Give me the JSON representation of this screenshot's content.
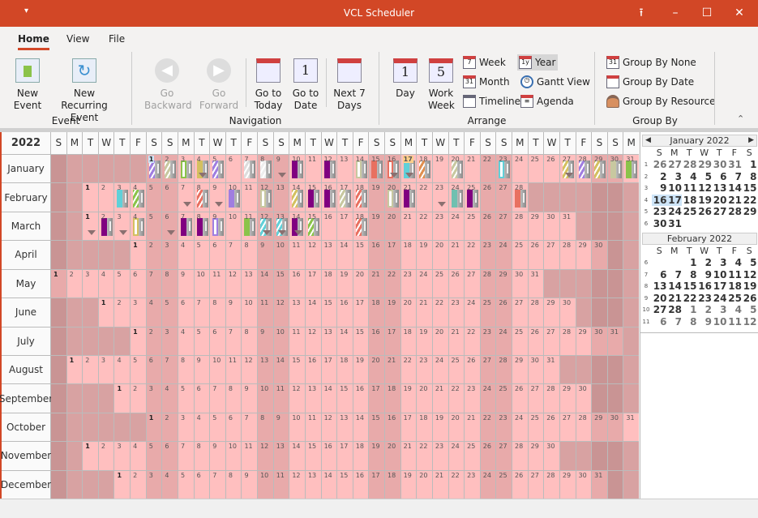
{
  "window": {
    "title": "VCL Scheduler",
    "quick_access_icon": "dropdown-icon",
    "controls": [
      "restore-icon",
      "minimize-icon",
      "maximize-icon",
      "close-icon"
    ],
    "accent": "#d24726"
  },
  "ribbon": {
    "tabs": [
      {
        "label": "Home",
        "active": true
      },
      {
        "label": "View"
      },
      {
        "label": "File"
      }
    ],
    "groups": {
      "event": {
        "label": "Event",
        "new_event": "New Event",
        "new_recurring": "New Recurring Event"
      },
      "navigation": {
        "label": "Navigation",
        "go_backward": "Go Backward",
        "go_forward": "Go Forward",
        "go_today": "Go to Today",
        "go_date": "Go to Date",
        "next7": "Next 7 Days"
      },
      "arrange": {
        "label": "Arrange",
        "day": "Day",
        "work_week": "Work Week",
        "week": "Week",
        "month": "Month",
        "timeline": "Timeline",
        "year": "Year",
        "gantt": "Gantt View",
        "agenda": "Agenda",
        "selected": "Year"
      },
      "group_by": {
        "label": "Group By",
        "none": "Group By None",
        "date": "Group By Date",
        "resource": "Group By Resource"
      }
    }
  },
  "year_view": {
    "year": "2022",
    "day_letters": [
      "S",
      "M",
      "T",
      "W",
      "T",
      "F",
      "S"
    ],
    "months": [
      "January",
      "February",
      "March",
      "April",
      "May",
      "June",
      "July",
      "August",
      "September",
      "October",
      "November",
      "December"
    ],
    "today": {
      "month": 1,
      "day": 17
    },
    "selected": {
      "month": 1,
      "day": 1
    },
    "colors": {
      "workday": "#ffbfbf",
      "weekend": "#e8aaaa",
      "outside": "#d8a2a2",
      "outside_weekend": "#c99494",
      "today": "#ffd08a",
      "selected": "#cde4f7"
    },
    "events": [
      {
        "m": 1,
        "d": 1,
        "c": "#a07ee0",
        "s": 1
      },
      {
        "m": 1,
        "d": 2,
        "c": "#c8c8a0",
        "s": 1
      },
      {
        "m": 1,
        "d": 3,
        "c": "#ffffff",
        "b": "#8bc34a"
      },
      {
        "m": 1,
        "d": 4,
        "c": "#d4c060",
        "a": 1
      },
      {
        "m": 1,
        "d": 5,
        "c": "#a07ee0",
        "s": 1
      },
      {
        "m": 1,
        "d": 7,
        "c": "#dddddd",
        "s": 1
      },
      {
        "m": 1,
        "d": 8,
        "c": "#eeeeee",
        "s": 1
      },
      {
        "m": 1,
        "d": 9,
        "a": 1
      },
      {
        "m": 1,
        "d": 10,
        "c": "#800080"
      },
      {
        "m": 1,
        "d": 12,
        "c": "#800080"
      },
      {
        "m": 1,
        "d": 14,
        "c": "#ffffff",
        "b": "#c8c8a0"
      },
      {
        "m": 1,
        "d": 15,
        "c": "#e87060"
      },
      {
        "m": 1,
        "d": 16,
        "c": "#ffffff",
        "b": "#e87060",
        "a": 1
      },
      {
        "m": 1,
        "d": 17,
        "c": "#60d0d8",
        "a": 1
      },
      {
        "m": 1,
        "d": 18,
        "c": "#e09050",
        "s": 1
      },
      {
        "m": 1,
        "d": 20,
        "c": "#c8c8a0",
        "s": 1
      },
      {
        "m": 1,
        "d": 23,
        "c": "#ffffff",
        "b": "#60d0d8"
      },
      {
        "m": 1,
        "d": 27,
        "c": "#d4c060",
        "s": 1,
        "a": 1
      },
      {
        "m": 1,
        "d": 28,
        "c": "#a07ee0",
        "s": 1
      },
      {
        "m": 1,
        "d": 29,
        "c": "#d4c060",
        "s": 1
      },
      {
        "m": 1,
        "d": 30,
        "c": "#c8c8a0"
      },
      {
        "m": 1,
        "d": 31,
        "c": "#8bc34a"
      },
      {
        "m": 2,
        "d": 3,
        "c": "#60d0d8"
      },
      {
        "m": 2,
        "d": 4,
        "c": "#8bc34a",
        "s": 1
      },
      {
        "m": 2,
        "d": 7,
        "a": 1
      },
      {
        "m": 2,
        "d": 8,
        "c": "#e87060",
        "s": 1
      },
      {
        "m": 2,
        "d": 9,
        "a": 1
      },
      {
        "m": 2,
        "d": 10,
        "c": "#a07ee0"
      },
      {
        "m": 2,
        "d": 12,
        "c": "#ffffff",
        "b": "#c8c8a0"
      },
      {
        "m": 2,
        "d": 14,
        "c": "#d4c060",
        "s": 1
      },
      {
        "m": 2,
        "d": 15,
        "c": "#800080"
      },
      {
        "m": 2,
        "d": 16,
        "c": "#800080"
      },
      {
        "m": 2,
        "d": 17,
        "c": "#c8c8a0",
        "s": 1
      },
      {
        "m": 2,
        "d": 18,
        "c": "#e87060",
        "s": 1
      },
      {
        "m": 2,
        "d": 20,
        "c": "#ffffff",
        "b": "#c8c8a0"
      },
      {
        "m": 2,
        "d": 21,
        "c": "#800080"
      },
      {
        "m": 2,
        "d": 23,
        "a": 1
      },
      {
        "m": 2,
        "d": 24,
        "c": "#70c0b0"
      },
      {
        "m": 2,
        "d": 25,
        "c": "#800080"
      },
      {
        "m": 2,
        "d": 28,
        "c": "#e87060"
      },
      {
        "m": 3,
        "d": 1,
        "a": 1
      },
      {
        "m": 3,
        "d": 2,
        "c": "#800080"
      },
      {
        "m": 3,
        "d": 3,
        "a": 1
      },
      {
        "m": 3,
        "d": 4,
        "c": "#ffffff",
        "b": "#d4c060"
      },
      {
        "m": 3,
        "d": 6,
        "a": 1
      },
      {
        "m": 3,
        "d": 7,
        "c": "#800080"
      },
      {
        "m": 3,
        "d": 8,
        "c": "#800080"
      },
      {
        "m": 3,
        "d": 9,
        "c": "#ffffff",
        "b": "#a07ee0"
      },
      {
        "m": 3,
        "d": 11,
        "c": "#8bc34a"
      },
      {
        "m": 3,
        "d": 12,
        "c": "#60d0d8",
        "s": 1,
        "a": 1
      },
      {
        "m": 3,
        "d": 13,
        "c": "#60d0d8",
        "s": 1,
        "a": 1
      },
      {
        "m": 3,
        "d": 14,
        "c": "#800080",
        "a": 1
      },
      {
        "m": 3,
        "d": 15,
        "c": "#8bc34a",
        "s": 1
      },
      {
        "m": 3,
        "d": 18,
        "c": "#e87060",
        "s": 1
      }
    ]
  },
  "mini_calendars": [
    {
      "title": "January 2022",
      "weeks": [
        [
          1,
          [
            26,
            27,
            28,
            29,
            30,
            31,
            1
          ]
        ],
        [
          2,
          [
            2,
            3,
            4,
            5,
            6,
            7,
            8
          ]
        ],
        [
          3,
          [
            9,
            10,
            11,
            12,
            13,
            14,
            15
          ]
        ],
        [
          4,
          [
            16,
            17,
            18,
            19,
            20,
            21,
            22
          ]
        ],
        [
          5,
          [
            23,
            24,
            25,
            26,
            27,
            28,
            29
          ]
        ],
        [
          6,
          [
            30,
            31
          ]
        ]
      ],
      "highlight": [
        16,
        17
      ]
    },
    {
      "title": "February 2022",
      "weeks": [
        [
          6,
          [
            null,
            null,
            1,
            2,
            3,
            4,
            5
          ]
        ],
        [
          7,
          [
            6,
            7,
            8,
            9,
            10,
            11,
            12
          ]
        ],
        [
          8,
          [
            13,
            14,
            15,
            16,
            17,
            18,
            19
          ]
        ],
        [
          9,
          [
            20,
            21,
            22,
            23,
            24,
            25,
            26
          ]
        ],
        [
          10,
          [
            27,
            28,
            1,
            2,
            3,
            4,
            5
          ]
        ],
        [
          11,
          [
            6,
            7,
            8,
            9,
            10,
            11,
            12
          ]
        ]
      ],
      "highlight": []
    }
  ]
}
